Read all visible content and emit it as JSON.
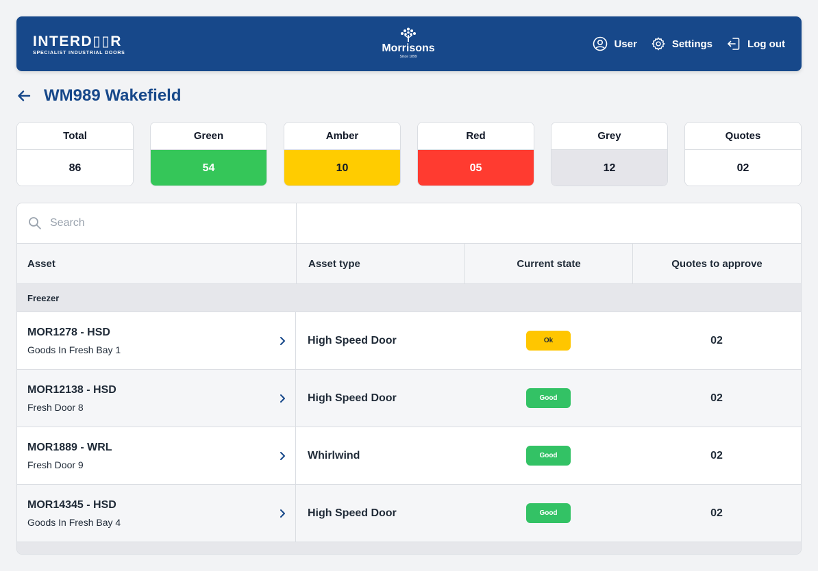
{
  "header": {
    "interdoor_word": "INTERD▯▯R",
    "interdoor_tagline": "SPECIALIST INDUSTRIAL DOORS",
    "morrisons_word": "Morrisons",
    "morrisons_since": "Since 1899",
    "nav": {
      "user_label": "User",
      "settings_label": "Settings",
      "logout_label": "Log out"
    },
    "bg_color": "#17488a"
  },
  "page": {
    "title": "WM989 Wakefield"
  },
  "stats": [
    {
      "label": "Total",
      "value": "86",
      "color": "#ffffff",
      "text_color": "#111827"
    },
    {
      "label": "Green",
      "value": "54",
      "color": "#35c659",
      "text_color": "#ffffff"
    },
    {
      "label": "Amber",
      "value": "10",
      "color": "#ffcc00",
      "text_color": "#111827"
    },
    {
      "label": "Red",
      "value": "05",
      "color": "#ff3b30",
      "text_color": "#ffffff"
    },
    {
      "label": "Grey",
      "value": "12",
      "color": "#e5e5ea",
      "text_color": "#111827"
    },
    {
      "label": "Quotes",
      "value": "02",
      "color": "#ffffff",
      "text_color": "#111827"
    }
  ],
  "search": {
    "placeholder": "Search",
    "value": ""
  },
  "table": {
    "columns": [
      "Asset",
      "Asset type",
      "Current state",
      "Quotes to approve"
    ],
    "group": "Freezer",
    "rows": [
      {
        "id": "MOR1278 - HSD",
        "name": "Goods In Fresh Bay 1",
        "type": "High Speed Door",
        "state": "Ok",
        "state_kind": "ok",
        "quotes": "02"
      },
      {
        "id": "MOR12138 - HSD",
        "name": "Fresh Door 8",
        "type": "High Speed Door",
        "state": "Good",
        "state_kind": "good",
        "quotes": "02"
      },
      {
        "id": "MOR1889 - WRL",
        "name": "Fresh Door 9",
        "type": "Whirlwind",
        "state": "Good",
        "state_kind": "good",
        "quotes": "02"
      },
      {
        "id": "MOR14345 - HSD",
        "name": "Goods In Fresh Bay 4",
        "type": "High Speed Door",
        "state": "Good",
        "state_kind": "good",
        "quotes": "02"
      }
    ]
  }
}
